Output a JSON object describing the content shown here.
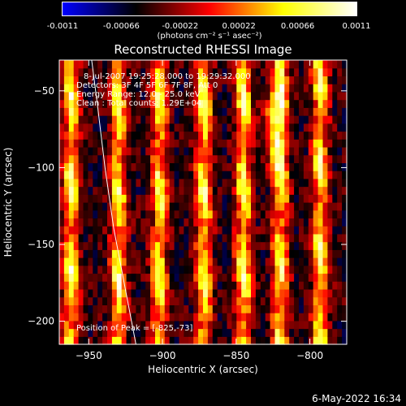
{
  "colorbar": {
    "tick_labels": [
      "-0.0011",
      "-0.00066",
      "-0.00022",
      "0.00022",
      "0.00066",
      "0.0011"
    ],
    "tick_values": [
      -0.0011,
      -0.00066,
      -0.00022,
      0.00022,
      0.00066,
      0.0011
    ],
    "range": [
      -0.0011,
      0.0011
    ],
    "units_label": "(photons cm⁻² s⁻¹ asec⁻²)",
    "colormap": [
      "#0000ff",
      "#000000",
      "#ff0000",
      "#ffff00",
      "#ffffff"
    ]
  },
  "chart_data": {
    "type": "heatmap",
    "title": "Reconstructed RHESSI Image",
    "xlabel": "Heliocentric X (arcsec)",
    "ylabel": "Heliocentric Y (arcsec)",
    "xlim": [
      -970,
      -775
    ],
    "ylim": [
      -215,
      -30
    ],
    "x_ticks": [
      -950,
      -900,
      -850,
      -800
    ],
    "y_ticks": [
      -200,
      -150,
      -100,
      -50
    ],
    "x_tick_labels": [
      "−950",
      "−900",
      "−850",
      "−800"
    ],
    "y_tick_labels": [
      "−200",
      "−150",
      "−100",
      "−50"
    ],
    "value_range": [
      -0.0011,
      0.0011
    ],
    "bright_columns_x": [
      -962,
      -930,
      -902,
      -872,
      -845,
      -820,
      -793
    ],
    "limb_curve": [
      [
        -948,
        -28
      ],
      [
        -944,
        -60
      ],
      [
        -939,
        -100
      ],
      [
        -933,
        -140
      ],
      [
        -925,
        -180
      ],
      [
        -918,
        -215
      ]
    ],
    "limb_color": "#ffffff",
    "peak_position": [
      -825,
      -73
    ],
    "annotations": [
      "8-Jul-2007 19:25:28.000 to 19:29:32.000",
      "Detectors: 3F 4F 5F 6F 7F 8F, Att 0",
      "Energy Range: 12.0 - 25.0 keV",
      "Clean :  Total counts: 1.29E+04"
    ],
    "peak_label": "Position of Peak = [-825,-73]"
  },
  "footer": {
    "timestamp": "6-May-2022 16:34"
  }
}
